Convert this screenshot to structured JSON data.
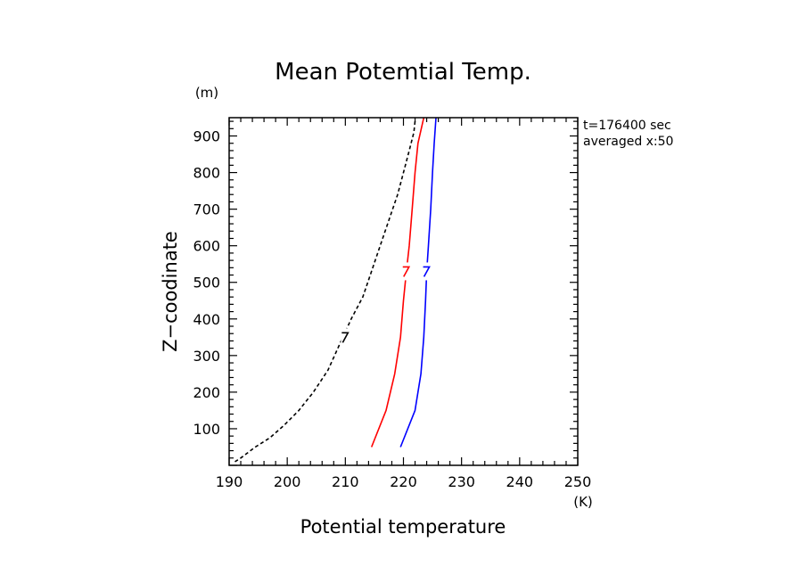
{
  "chart_data": {
    "type": "line",
    "title": "Mean Potemtial Temp.",
    "xlabel": "Potential temperature",
    "ylabel": "Z−coodinate",
    "x_unit": "(K)",
    "y_unit": "(m)",
    "xlim": [
      190,
      250
    ],
    "ylim": [
      0,
      950
    ],
    "x_ticks": [
      "190",
      "200",
      "210",
      "220",
      "230",
      "240",
      "250"
    ],
    "y_ticks": [
      "100",
      "200",
      "300",
      "400",
      "500",
      "600",
      "700",
      "800",
      "900"
    ],
    "annotation": [
      "t=176400 sec",
      "averaged   x:50"
    ],
    "grid": false,
    "series": [
      {
        "color": "#000000",
        "style": "dashed",
        "contour_label": "7",
        "label_at": [
          210,
          350
        ],
        "x": [
          191,
          192,
          194.5,
          197,
          199.5,
          202,
          204.5,
          207,
          209,
          211,
          213,
          214.5,
          216,
          217.5,
          219,
          220,
          221,
          221.8,
          222
        ],
        "y": [
          10,
          20,
          50,
          75,
          110,
          150,
          200,
          260,
          330,
          400,
          460,
          530,
          600,
          670,
          740,
          800,
          860,
          910,
          940
        ]
      },
      {
        "color": "#ff0000",
        "style": "solid",
        "contour_label": "",
        "label_at": [
          220.5,
          530
        ],
        "x": [
          214.5,
          217,
          218.5,
          219.5,
          220,
          220.5,
          221,
          221.5,
          222,
          222.5,
          223.5
        ],
        "y": [
          50,
          150,
          250,
          350,
          450,
          530,
          600,
          700,
          800,
          880,
          950
        ]
      },
      {
        "color": "#0000ff",
        "style": "solid",
        "contour_label": "",
        "label_at": [
          224,
          530
        ],
        "x": [
          219.5,
          222,
          223,
          223.5,
          223.8,
          224,
          224.3,
          224.7,
          225,
          225.3,
          225.6
        ],
        "y": [
          50,
          150,
          250,
          350,
          450,
          530,
          600,
          700,
          800,
          880,
          950
        ]
      }
    ]
  }
}
